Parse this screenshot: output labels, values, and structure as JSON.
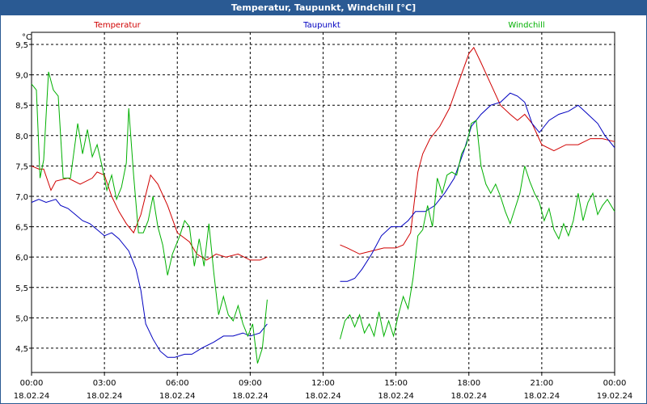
{
  "window": {
    "title": "Temperatur, Taupunkt, Windchill [°C]"
  },
  "chart_data": {
    "type": "line",
    "title": "Temperatur, Taupunkt, Windchill [°C]",
    "unit_label": "°C",
    "ylim": [
      4.1,
      9.7
    ],
    "xlim": [
      0,
      24
    ],
    "grid": true,
    "legend_placement": "top",
    "y_ticks": [
      "9,5",
      "9,0",
      "8,5",
      "8,0",
      "7,5",
      "7,0",
      "6,5",
      "6,0",
      "5,5",
      "5,0",
      "4,5"
    ],
    "y_tick_values": [
      9.5,
      9.0,
      8.5,
      8.0,
      7.5,
      7.0,
      6.5,
      6.0,
      5.5,
      5.0,
      4.5
    ],
    "x_ticks": [
      {
        "time": "00:00",
        "date": "18.02.24",
        "hour": 0
      },
      {
        "time": "03:00",
        "date": "18.02.24",
        "hour": 3
      },
      {
        "time": "06:00",
        "date": "18.02.24",
        "hour": 6
      },
      {
        "time": "09:00",
        "date": "18.02.24",
        "hour": 9
      },
      {
        "time": "12:00",
        "date": "18.02.24",
        "hour": 12
      },
      {
        "time": "15:00",
        "date": "18.02.24",
        "hour": 15
      },
      {
        "time": "18:00",
        "date": "18.02.24",
        "hour": 18
      },
      {
        "time": "21:00",
        "date": "18.02.24",
        "hour": 21
      },
      {
        "time": "00:00",
        "date": "19.02.24",
        "hour": 24
      }
    ],
    "series": [
      {
        "name": "Temperatur",
        "color": "#d00000",
        "segments": [
          [
            [
              0,
              7.5
            ],
            [
              0.3,
              7.45
            ],
            [
              0.5,
              7.45
            ],
            [
              0.8,
              7.1
            ],
            [
              1.0,
              7.25
            ],
            [
              1.5,
              7.3
            ],
            [
              2.0,
              7.2
            ],
            [
              2.5,
              7.3
            ],
            [
              2.7,
              7.4
            ],
            [
              3.0,
              7.35
            ],
            [
              3.3,
              7.0
            ],
            [
              3.6,
              6.75
            ],
            [
              3.9,
              6.55
            ],
            [
              4.2,
              6.4
            ],
            [
              4.5,
              6.7
            ],
            [
              4.9,
              7.35
            ],
            [
              5.2,
              7.2
            ],
            [
              5.6,
              6.85
            ],
            [
              6.0,
              6.4
            ],
            [
              6.5,
              6.25
            ],
            [
              6.8,
              6.05
            ],
            [
              7.2,
              5.95
            ],
            [
              7.6,
              6.05
            ],
            [
              8.0,
              6.0
            ],
            [
              8.5,
              6.05
            ],
            [
              9.0,
              5.95
            ],
            [
              9.4,
              5.95
            ],
            [
              9.7,
              6.0
            ]
          ],
          [
            [
              12.7,
              6.2
            ],
            [
              13.0,
              6.15
            ],
            [
              13.5,
              6.05
            ],
            [
              14.0,
              6.1
            ],
            [
              14.5,
              6.15
            ],
            [
              15.0,
              6.15
            ],
            [
              15.3,
              6.2
            ],
            [
              15.6,
              6.4
            ],
            [
              15.9,
              7.4
            ],
            [
              16.1,
              7.7
            ],
            [
              16.4,
              7.95
            ],
            [
              16.8,
              8.15
            ],
            [
              17.2,
              8.45
            ],
            [
              17.6,
              8.9
            ],
            [
              18.0,
              9.35
            ],
            [
              18.2,
              9.45
            ],
            [
              18.5,
              9.2
            ],
            [
              18.9,
              8.85
            ],
            [
              19.3,
              8.5
            ],
            [
              19.7,
              8.35
            ],
            [
              20.0,
              8.25
            ],
            [
              20.3,
              8.35
            ],
            [
              20.6,
              8.2
            ],
            [
              21.0,
              7.85
            ],
            [
              21.5,
              7.75
            ],
            [
              22.0,
              7.85
            ],
            [
              22.5,
              7.85
            ],
            [
              23.0,
              7.95
            ],
            [
              23.5,
              7.95
            ],
            [
              24.0,
              7.9
            ]
          ]
        ]
      },
      {
        "name": "Taupunkt",
        "color": "#0000c0",
        "segments": [
          [
            [
              0,
              6.9
            ],
            [
              0.3,
              6.95
            ],
            [
              0.6,
              6.9
            ],
            [
              1.0,
              6.95
            ],
            [
              1.2,
              6.85
            ],
            [
              1.5,
              6.8
            ],
            [
              1.8,
              6.7
            ],
            [
              2.1,
              6.6
            ],
            [
              2.4,
              6.55
            ],
            [
              2.7,
              6.45
            ],
            [
              3.0,
              6.35
            ],
            [
              3.3,
              6.4
            ],
            [
              3.6,
              6.3
            ],
            [
              4.0,
              6.1
            ],
            [
              4.3,
              5.8
            ],
            [
              4.5,
              5.45
            ],
            [
              4.7,
              4.9
            ],
            [
              5.0,
              4.65
            ],
            [
              5.3,
              4.45
            ],
            [
              5.6,
              4.35
            ],
            [
              5.9,
              4.35
            ],
            [
              6.3,
              4.4
            ],
            [
              6.6,
              4.4
            ],
            [
              7.0,
              4.5
            ],
            [
              7.5,
              4.6
            ],
            [
              7.9,
              4.7
            ],
            [
              8.3,
              4.7
            ],
            [
              8.7,
              4.75
            ],
            [
              9.0,
              4.7
            ],
            [
              9.4,
              4.75
            ],
            [
              9.7,
              4.9
            ]
          ],
          [
            [
              12.7,
              5.6
            ],
            [
              13.0,
              5.6
            ],
            [
              13.3,
              5.65
            ],
            [
              13.6,
              5.8
            ],
            [
              14.0,
              6.05
            ],
            [
              14.4,
              6.35
            ],
            [
              14.8,
              6.5
            ],
            [
              15.2,
              6.5
            ],
            [
              15.5,
              6.6
            ],
            [
              15.8,
              6.75
            ],
            [
              16.2,
              6.75
            ],
            [
              16.6,
              6.85
            ],
            [
              17.0,
              7.05
            ],
            [
              17.4,
              7.3
            ],
            [
              17.8,
              7.75
            ],
            [
              18.1,
              8.15
            ],
            [
              18.5,
              8.35
            ],
            [
              18.9,
              8.5
            ],
            [
              19.3,
              8.55
            ],
            [
              19.7,
              8.7
            ],
            [
              20.0,
              8.65
            ],
            [
              20.3,
              8.55
            ],
            [
              20.6,
              8.2
            ],
            [
              20.9,
              8.05
            ],
            [
              21.3,
              8.25
            ],
            [
              21.7,
              8.35
            ],
            [
              22.1,
              8.4
            ],
            [
              22.5,
              8.5
            ],
            [
              22.9,
              8.35
            ],
            [
              23.3,
              8.2
            ],
            [
              23.6,
              8.0
            ],
            [
              24.0,
              7.8
            ]
          ]
        ]
      },
      {
        "name": "Windchill",
        "color": "#00b000",
        "segments": [
          [
            [
              0,
              8.85
            ],
            [
              0.2,
              8.75
            ],
            [
              0.35,
              7.3
            ],
            [
              0.5,
              7.6
            ],
            [
              0.7,
              9.05
            ],
            [
              0.9,
              8.75
            ],
            [
              1.1,
              8.65
            ],
            [
              1.3,
              7.3
            ],
            [
              1.6,
              7.3
            ],
            [
              1.9,
              8.2
            ],
            [
              2.1,
              7.7
            ],
            [
              2.3,
              8.1
            ],
            [
              2.5,
              7.65
            ],
            [
              2.7,
              7.85
            ],
            [
              2.9,
              7.5
            ],
            [
              3.1,
              7.1
            ],
            [
              3.3,
              7.35
            ],
            [
              3.5,
              6.95
            ],
            [
              3.7,
              7.15
            ],
            [
              3.9,
              7.55
            ],
            [
              4.0,
              8.45
            ],
            [
              4.2,
              7.35
            ],
            [
              4.4,
              6.4
            ],
            [
              4.6,
              6.4
            ],
            [
              4.8,
              6.6
            ],
            [
              5.0,
              7.0
            ],
            [
              5.2,
              6.5
            ],
            [
              5.4,
              6.2
            ],
            [
              5.6,
              5.7
            ],
            [
              5.8,
              6.05
            ],
            [
              6.1,
              6.35
            ],
            [
              6.3,
              6.6
            ],
            [
              6.5,
              6.5
            ],
            [
              6.7,
              5.85
            ],
            [
              6.9,
              6.3
            ],
            [
              7.1,
              5.85
            ],
            [
              7.3,
              6.55
            ],
            [
              7.5,
              5.75
            ],
            [
              7.7,
              5.05
            ],
            [
              7.9,
              5.35
            ],
            [
              8.1,
              5.05
            ],
            [
              8.3,
              4.95
            ],
            [
              8.5,
              5.2
            ],
            [
              8.7,
              4.9
            ],
            [
              8.9,
              4.7
            ],
            [
              9.1,
              4.9
            ],
            [
              9.3,
              4.25
            ],
            [
              9.5,
              4.5
            ],
            [
              9.7,
              5.3
            ]
          ],
          [
            [
              12.7,
              4.65
            ],
            [
              12.9,
              4.95
            ],
            [
              13.1,
              5.05
            ],
            [
              13.3,
              4.85
            ],
            [
              13.5,
              5.05
            ],
            [
              13.7,
              4.75
            ],
            [
              13.9,
              4.9
            ],
            [
              14.1,
              4.7
            ],
            [
              14.3,
              5.1
            ],
            [
              14.5,
              4.7
            ],
            [
              14.7,
              4.95
            ],
            [
              14.9,
              4.7
            ],
            [
              15.1,
              5.05
            ],
            [
              15.3,
              5.35
            ],
            [
              15.5,
              5.15
            ],
            [
              15.7,
              5.65
            ],
            [
              15.9,
              6.35
            ],
            [
              16.1,
              6.45
            ],
            [
              16.3,
              6.85
            ],
            [
              16.5,
              6.5
            ],
            [
              16.7,
              7.3
            ],
            [
              16.9,
              7.05
            ],
            [
              17.1,
              7.35
            ],
            [
              17.3,
              7.4
            ],
            [
              17.5,
              7.35
            ],
            [
              17.7,
              7.7
            ],
            [
              17.9,
              7.85
            ],
            [
              18.1,
              8.2
            ],
            [
              18.3,
              8.25
            ],
            [
              18.5,
              7.5
            ],
            [
              18.7,
              7.2
            ],
            [
              18.9,
              7.05
            ],
            [
              19.1,
              7.2
            ],
            [
              19.3,
              7.0
            ],
            [
              19.5,
              6.75
            ],
            [
              19.7,
              6.55
            ],
            [
              19.9,
              6.8
            ],
            [
              20.1,
              7.05
            ],
            [
              20.3,
              7.5
            ],
            [
              20.5,
              7.25
            ],
            [
              20.7,
              7.05
            ],
            [
              20.9,
              6.9
            ],
            [
              21.1,
              6.6
            ],
            [
              21.3,
              6.8
            ],
            [
              21.5,
              6.45
            ],
            [
              21.7,
              6.3
            ],
            [
              21.9,
              6.55
            ],
            [
              22.1,
              6.35
            ],
            [
              22.3,
              6.6
            ],
            [
              22.5,
              7.05
            ],
            [
              22.7,
              6.6
            ],
            [
              22.9,
              6.9
            ],
            [
              23.1,
              7.05
            ],
            [
              23.3,
              6.7
            ],
            [
              23.5,
              6.85
            ],
            [
              23.7,
              6.95
            ],
            [
              24.0,
              6.75
            ]
          ]
        ]
      }
    ]
  }
}
